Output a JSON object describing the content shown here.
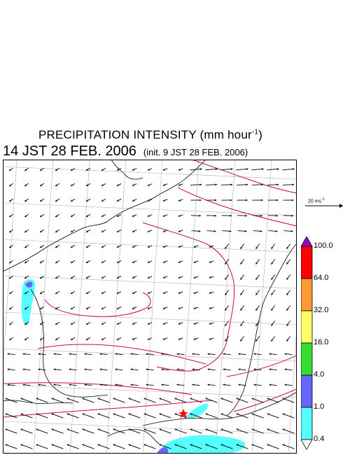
{
  "header": {
    "title": "PRECIPITATION INTENSITY (mm hour",
    "title_sup": "-1",
    "title_close": ")",
    "valid_time": "14 JST 28 FEB. 2006",
    "init_time": "(init. 9 JST 28 FEB. 2006)"
  },
  "wind_scale": {
    "label": "20 ms",
    "label_sup": "-1"
  },
  "colorbar": {
    "levels": [
      "100.0",
      "64.0",
      "32.0",
      "16.0",
      "4.0",
      "1.0",
      "0.4"
    ],
    "colors": [
      "#9900cc",
      "#ff0000",
      "#ff9933",
      "#ffff66",
      "#33dd33",
      "#6666ff",
      "#55ffff",
      "#ffffff"
    ]
  },
  "map": {
    "contour_color": "#cc0066",
    "coast_color": "#000000",
    "grid_color": "#b0b0b0",
    "marker": "red-star-icon",
    "precip_color": "#55ffff",
    "precip_strong_color": "#6666ff"
  }
}
